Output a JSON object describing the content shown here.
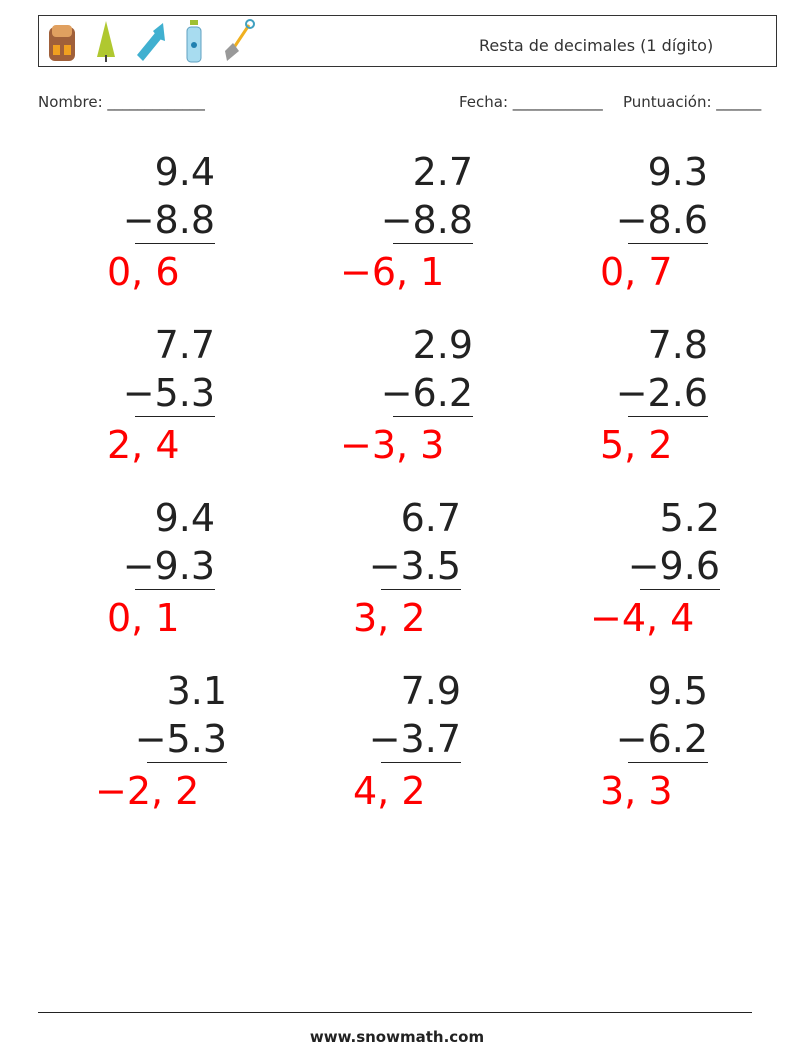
{
  "header": {
    "title": "Resta de decimales (1 dígito)",
    "icons": [
      "backpack-icon",
      "tree-icon",
      "flashlight-icon",
      "water-bottle-icon",
      "shovel-icon"
    ]
  },
  "fields": {
    "name": "Nombre: _____________",
    "date": "Fecha: ____________",
    "score": "Puntuación: ______"
  },
  "problems": [
    {
      "a": "9.4",
      "b": "−8.8",
      "answer": "0, 6"
    },
    {
      "a": "2.7",
      "b": "−8.8",
      "answer": "−6, 1"
    },
    {
      "a": "9.3",
      "b": "−8.6",
      "answer": "0, 7"
    },
    {
      "a": "7.7",
      "b": "−5.3",
      "answer": "2, 4"
    },
    {
      "a": "2.9",
      "b": "−6.2",
      "answer": "−3, 3"
    },
    {
      "a": "7.8",
      "b": "−2.6",
      "answer": "5, 2"
    },
    {
      "a": "9.4",
      "b": "−9.3",
      "answer": "0, 1"
    },
    {
      "a": "6.7",
      "b": "−3.5",
      "answer": "3, 2"
    },
    {
      "a": "5.2",
      "b": "−9.6",
      "answer": "−4, 4"
    },
    {
      "a": "3.1",
      "b": "−5.3",
      "answer": "−2, 2"
    },
    {
      "a": "7.9",
      "b": "−3.7",
      "answer": "4, 2"
    },
    {
      "a": "9.5",
      "b": "−6.2",
      "answer": "3, 3"
    }
  ],
  "colors": {
    "answer": "#ff0000",
    "text": "#222222"
  },
  "footer": "www.snowmath.com"
}
